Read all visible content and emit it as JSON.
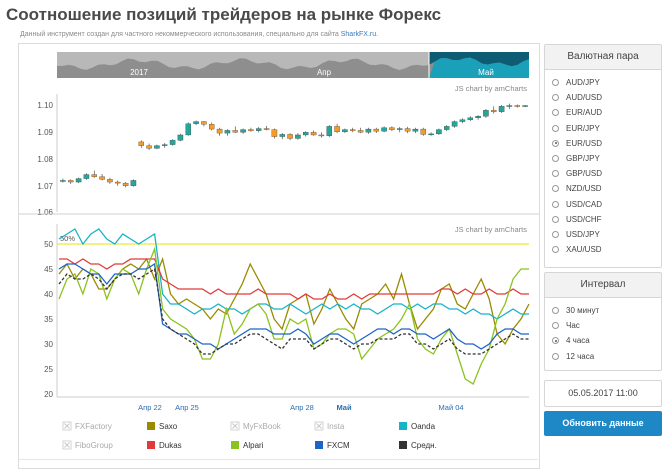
{
  "page": {
    "title": "Соотношение позиций трейдеров на рынке Форекс",
    "subtitle_text": "Данный инструмент создан для частного некоммерческого использования, специально для сайта",
    "subtitle_link": "SharkFX.ru."
  },
  "navigator": {
    "labels": [
      "2017",
      "Апр",
      "Май"
    ]
  },
  "price_chart": {
    "credit": "JS chart by amCharts",
    "y_ticks": [
      "1.10",
      "1.09",
      "1.08",
      "1.07",
      "1.06"
    ]
  },
  "sentiment_chart": {
    "credit": "JS chart by amCharts",
    "level_label": "50%",
    "y_ticks": [
      "50",
      "45",
      "40",
      "35",
      "30",
      "25",
      "20"
    ],
    "x_ticks": [
      "Апр 22",
      "Апр 25",
      "Апр 28",
      "Май",
      "Май 04"
    ]
  },
  "legend": [
    {
      "label": "FXFactory",
      "color": "#cccccc",
      "enabled": false
    },
    {
      "label": "Saxo",
      "color": "#9a8a00",
      "enabled": true
    },
    {
      "label": "MyFxBook",
      "color": "#cccccc",
      "enabled": false
    },
    {
      "label": "Insta",
      "color": "#cccccc",
      "enabled": false
    },
    {
      "label": "Oanda",
      "color": "#17b3c9",
      "enabled": true
    },
    {
      "label": "FiboGroup",
      "color": "#cccccc",
      "enabled": false
    },
    {
      "label": "Dukas",
      "color": "#e23a3a",
      "enabled": true
    },
    {
      "label": "Alpari",
      "color": "#8bc21f",
      "enabled": true
    },
    {
      "label": "FXCM",
      "color": "#1e63c8",
      "enabled": true
    },
    {
      "label": "Средн.",
      "color": "#333333",
      "enabled": true
    }
  ],
  "currency_panel": {
    "title": "Валютная пара",
    "selected": "EUR/USD",
    "options": [
      "AUD/JPY",
      "AUD/USD",
      "EUR/AUD",
      "EUR/JPY",
      "EUR/USD",
      "GBP/JPY",
      "GBP/USD",
      "NZD/USD",
      "USD/CAD",
      "USD/CHF",
      "USD/JPY",
      "XAU/USD"
    ]
  },
  "interval_panel": {
    "title": "Интервал",
    "selected": "4 часа",
    "options": [
      "30 минут",
      "Час",
      "4 часа",
      "12 часа"
    ]
  },
  "date_value": "05.05.2017 11:00",
  "update_button": "Обновить данные",
  "chart_data": [
    {
      "type": "candlestick",
      "title": "",
      "ylim": [
        1.06,
        1.1
      ],
      "y_ticks": [
        1.06,
        1.07,
        1.08,
        1.09,
        1.1
      ],
      "candles": [
        [
          1.0715,
          1.0725,
          1.071,
          1.0718
        ],
        [
          1.0718,
          1.0722,
          1.0705,
          1.0712
        ],
        [
          1.0712,
          1.0728,
          1.0708,
          1.0725
        ],
        [
          1.0725,
          1.0745,
          1.072,
          1.074
        ],
        [
          1.074,
          1.0755,
          1.0728,
          1.0732
        ],
        [
          1.0732,
          1.0742,
          1.0718,
          1.0722
        ],
        [
          1.0722,
          1.0728,
          1.0705,
          1.0712
        ],
        [
          1.0712,
          1.0718,
          1.0698,
          1.0708
        ],
        [
          1.0708,
          1.0712,
          1.0692,
          1.0698
        ],
        [
          1.0698,
          1.0722,
          1.0695,
          1.0718
        ],
        [
          1.0862,
          1.0868,
          1.084,
          1.0848
        ],
        [
          1.0848,
          1.0856,
          1.0832,
          1.0838
        ],
        [
          1.0838,
          1.0852,
          1.0835,
          1.0848
        ],
        [
          1.0848,
          1.0858,
          1.084,
          1.0852
        ],
        [
          1.0852,
          1.0872,
          1.0848,
          1.0868
        ],
        [
          1.0868,
          1.0892,
          1.0865,
          1.0888
        ],
        [
          1.0888,
          1.0935,
          1.0885,
          1.093
        ],
        [
          1.093,
          1.0942,
          1.0925,
          1.0938
        ],
        [
          1.0938,
          1.094,
          1.092,
          1.0928
        ],
        [
          1.0928,
          1.0935,
          1.0905,
          1.091
        ],
        [
          1.091,
          1.0915,
          1.0885,
          1.0895
        ],
        [
          1.0895,
          1.091,
          1.0885,
          1.0905
        ],
        [
          1.0905,
          1.092,
          1.0895,
          1.0898
        ],
        [
          1.0898,
          1.0912,
          1.0892,
          1.0908
        ],
        [
          1.0908,
          1.0915,
          1.09,
          1.0904
        ],
        [
          1.0904,
          1.0918,
          1.0898,
          1.0912
        ],
        [
          1.0912,
          1.0922,
          1.0905,
          1.0908
        ],
        [
          1.0908,
          1.0912,
          1.0875,
          1.0882
        ],
        [
          1.0882,
          1.0895,
          1.0872,
          1.089
        ],
        [
          1.089,
          1.0895,
          1.0868,
          1.0875
        ],
        [
          1.0875,
          1.0895,
          1.087,
          1.0888
        ],
        [
          1.0888,
          1.0902,
          1.0882,
          1.0898
        ],
        [
          1.0898,
          1.0905,
          1.0885,
          1.0888
        ],
        [
          1.0888,
          1.0898,
          1.0878,
          1.0885
        ],
        [
          1.0885,
          1.0925,
          1.088,
          1.092
        ],
        [
          1.092,
          1.093,
          1.0895,
          1.09
        ],
        [
          1.09,
          1.0912,
          1.0895,
          1.0908
        ],
        [
          1.0908,
          1.0915,
          1.0898,
          1.0905
        ],
        [
          1.0905,
          1.0915,
          1.0895,
          1.0898
        ],
        [
          1.0898,
          1.0915,
          1.0892,
          1.091
        ],
        [
          1.091,
          1.0915,
          1.0895,
          1.0902
        ],
        [
          1.0902,
          1.092,
          1.0898,
          1.0915
        ],
        [
          1.0915,
          1.092,
          1.0902,
          1.0908
        ],
        [
          1.0908,
          1.0918,
          1.0898,
          1.0912
        ],
        [
          1.0912,
          1.0918,
          1.0895,
          1.0902
        ],
        [
          1.0902,
          1.0915,
          1.0895,
          1.091
        ],
        [
          1.091,
          1.0915,
          1.0885,
          1.089
        ],
        [
          1.089,
          1.0898,
          1.0885,
          1.0892
        ],
        [
          1.0892,
          1.0912,
          1.0888,
          1.0908
        ],
        [
          1.0908,
          1.0925,
          1.0902,
          1.092
        ],
        [
          1.092,
          1.0942,
          1.0915,
          1.0938
        ],
        [
          1.0938,
          1.095,
          1.0932,
          1.0945
        ],
        [
          1.0945,
          1.0958,
          1.094,
          1.0952
        ],
        [
          1.0952,
          1.0962,
          1.0945,
          1.0958
        ],
        [
          1.0958,
          1.0985,
          1.0952,
          1.098
        ],
        [
          1.098,
          1.0995,
          1.0968,
          1.0975
        ],
        [
          1.0975,
          1.1,
          1.097,
          1.0995
        ],
        [
          1.0995,
          1.1005,
          1.0985,
          1.0998
        ],
        [
          1.0998,
          1.1002,
          1.099,
          1.0996
        ],
        [
          1.0996,
          1.1,
          1.0992,
          1.0998
        ]
      ],
      "up_color": "#26a69a",
      "down_color": "#f39c2a"
    },
    {
      "type": "line",
      "title": "",
      "ylim": [
        20,
        52
      ],
      "y_ticks": [
        20,
        25,
        30,
        35,
        40,
        45,
        50
      ],
      "reference_line": {
        "value": 50,
        "color": "#e6e600"
      },
      "series": [
        {
          "name": "Saxo",
          "color": "#9a8a00",
          "values": [
            44,
            46,
            43,
            45,
            44,
            41,
            41,
            43,
            45,
            46,
            45,
            47,
            43,
            47,
            40,
            38,
            39,
            38,
            37,
            35,
            37,
            36,
            39,
            42,
            46,
            43,
            40,
            35,
            33,
            38,
            39,
            40,
            34,
            37,
            41,
            38,
            35,
            33,
            38,
            39,
            40,
            42,
            39,
            44,
            38,
            33,
            35,
            37,
            41,
            42,
            38,
            37,
            40,
            43,
            39,
            32,
            30,
            33,
            35,
            38
          ]
        },
        {
          "name": "Oanda",
          "color": "#17b3c9",
          "values": [
            51,
            52,
            53,
            50,
            52,
            53,
            51,
            50,
            52,
            51,
            50,
            51,
            52,
            40,
            38,
            38,
            37,
            36,
            37,
            37,
            38,
            37,
            37,
            36,
            37,
            38,
            38,
            37,
            37,
            38,
            37,
            36,
            37,
            38,
            37,
            38,
            37,
            38,
            37,
            37,
            36,
            37,
            38,
            38,
            37,
            38,
            37,
            38,
            38,
            37,
            37,
            36,
            37,
            36,
            36,
            35,
            36,
            37,
            36,
            36
          ]
        },
        {
          "name": "Dukas",
          "color": "#e23a3a",
          "values": [
            47,
            47,
            46,
            47,
            46,
            46,
            45,
            46,
            46,
            47,
            47,
            47,
            47,
            43,
            42,
            41,
            41,
            41,
            41,
            40,
            41,
            40,
            40,
            40,
            40,
            41,
            40,
            40,
            40,
            40,
            39,
            40,
            39,
            39,
            40,
            39,
            39,
            40,
            39,
            40,
            40,
            40,
            40,
            40,
            40,
            40,
            40,
            40,
            41,
            41,
            40,
            41,
            40,
            40,
            41,
            40,
            40,
            41,
            40,
            40
          ]
        },
        {
          "name": "Alpari",
          "color": "#8bc21f",
          "values": [
            39,
            43,
            44,
            40,
            45,
            44,
            39,
            43,
            45,
            44,
            40,
            45,
            49,
            37,
            35,
            34,
            33,
            31,
            27,
            27,
            30,
            37,
            32,
            34,
            37,
            38,
            36,
            31,
            31,
            35,
            34,
            35,
            29,
            30,
            32,
            33,
            33,
            32,
            27,
            29,
            31,
            32,
            33,
            35,
            38,
            31,
            29,
            28,
            31,
            33,
            28,
            23,
            22,
            26,
            29,
            35,
            38,
            43,
            45,
            45
          ]
        },
        {
          "name": "FXCM",
          "color": "#1e63c8",
          "values": [
            45,
            46,
            46,
            45,
            44,
            44,
            42,
            44,
            44,
            44,
            45,
            45,
            46,
            34,
            33,
            32,
            32,
            31,
            30,
            30,
            29,
            30,
            31,
            32,
            33,
            33,
            33,
            32,
            32,
            32,
            33,
            32,
            30,
            31,
            32,
            32,
            31,
            30,
            31,
            32,
            33,
            33,
            32,
            33,
            33,
            32,
            32,
            31,
            32,
            33,
            31,
            30,
            30,
            29,
            30,
            32,
            33,
            33,
            32,
            32
          ]
        },
        {
          "name": "Средн.",
          "color": "#333333",
          "values": [
            42,
            44,
            43,
            43,
            44,
            43,
            41,
            43,
            44,
            44,
            43,
            44,
            45,
            35,
            33,
            32,
            31,
            30,
            28,
            28,
            29,
            30,
            30,
            31,
            32,
            32,
            31,
            30,
            29,
            31,
            31,
            31,
            29,
            30,
            31,
            31,
            30,
            29,
            30,
            30,
            31,
            31,
            31,
            32,
            32,
            30,
            30,
            29,
            30,
            31,
            29,
            28,
            28,
            28,
            29,
            30,
            31,
            32,
            31,
            31
          ]
        }
      ]
    }
  ]
}
